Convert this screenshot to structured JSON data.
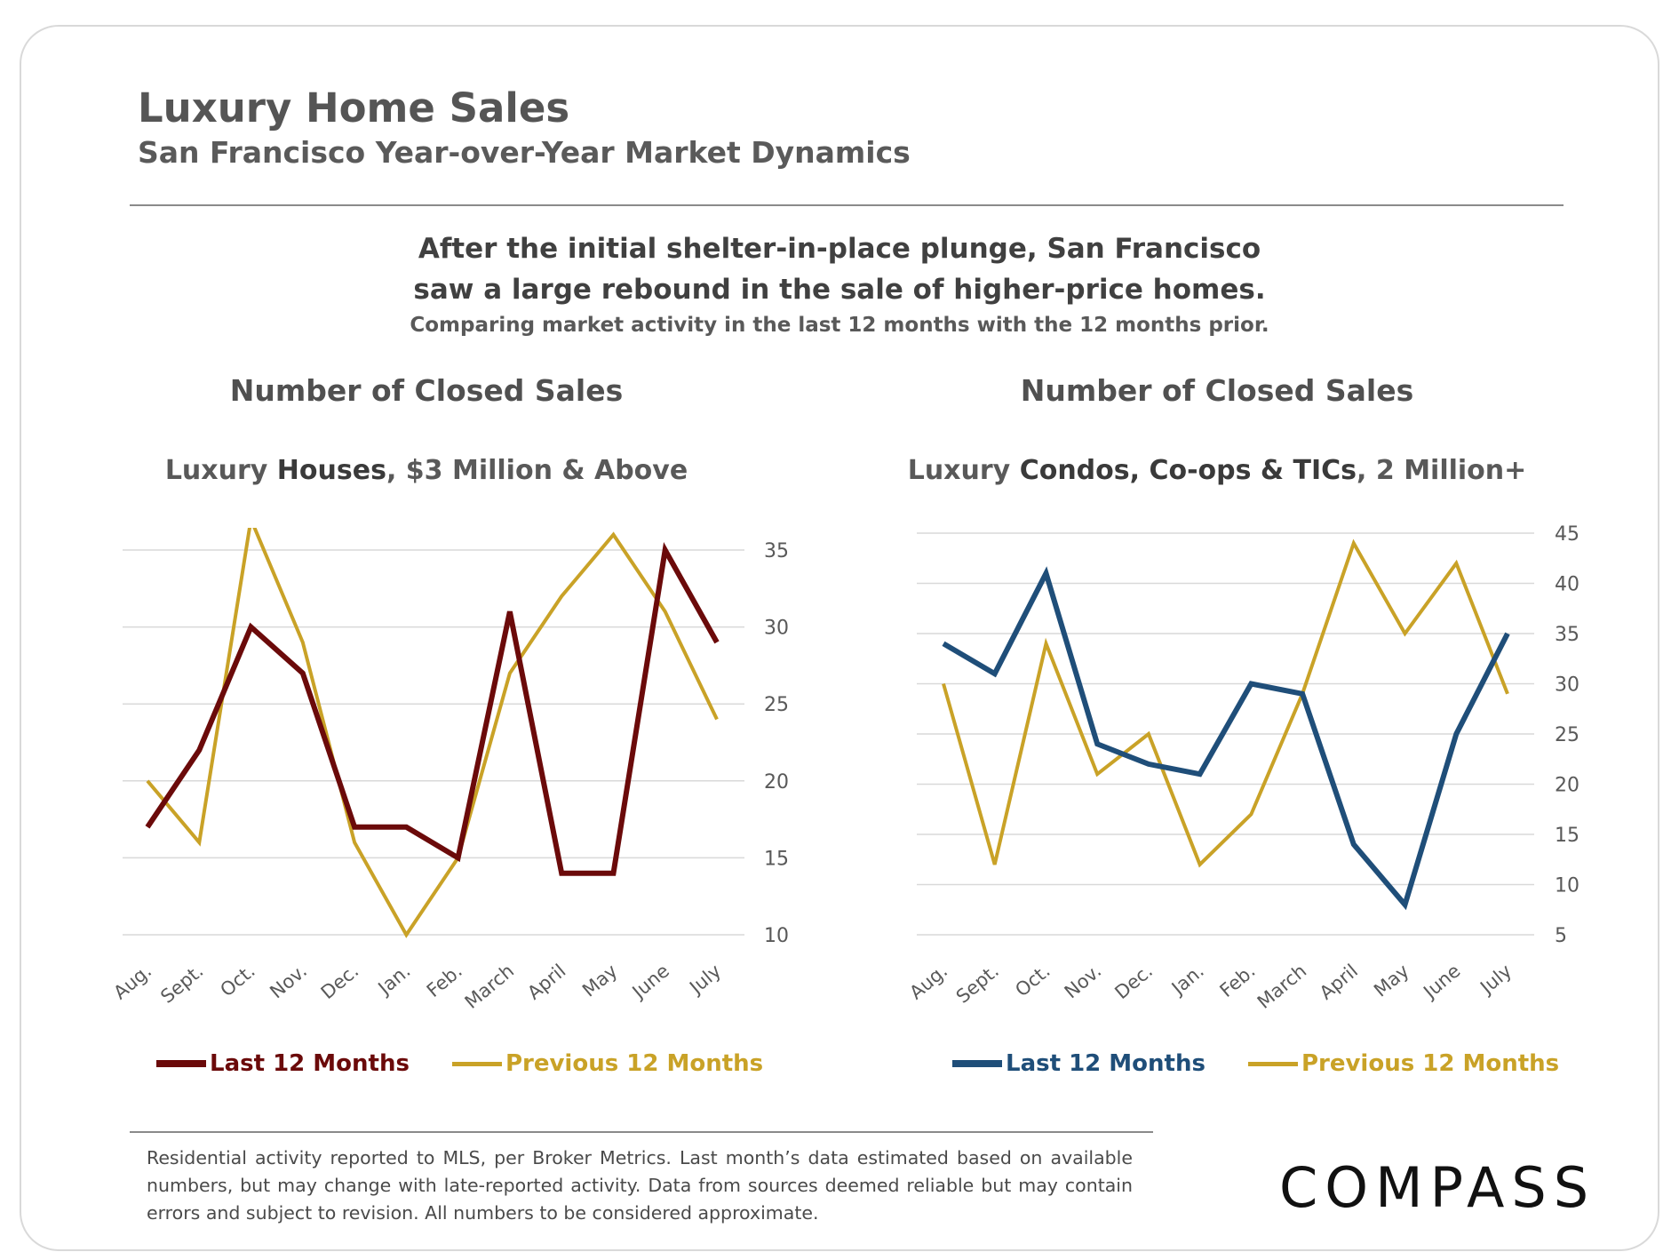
{
  "header": {
    "title": "Luxury Home Sales",
    "subtitle": "San Francisco Year-over-Year Market Dynamics"
  },
  "headline": {
    "line1": "After the initial shelter-in-place plunge, San Francisco",
    "line2": "saw a large rebound in the sale of higher-price homes.",
    "note": "Comparing market activity in the last 12 months with the 12 months prior."
  },
  "footer": {
    "disclaimer": "Residential activity reported to MLS, per Broker Metrics. Last month’s data estimated based on available numbers, but may change with late-reported activity. Data from sources deemed reliable but may contain errors and subject to revision. All numbers to be considered approximate.",
    "logo": "COMPASS"
  },
  "chart_data": [
    {
      "type": "line",
      "title": "Number of Closed Sales",
      "subtitle_pre": "Luxury ",
      "subtitle_bold": "Houses",
      "subtitle_post": ", $3 Million & Above",
      "categories": [
        "Aug.",
        "Sept.",
        "Oct.",
        "Nov.",
        "Dec.",
        "Jan.",
        "Feb.",
        "March",
        "April",
        "May",
        "June",
        "July"
      ],
      "yticks": [
        10,
        15,
        20,
        25,
        30,
        35
      ],
      "ylim": [
        10,
        35
      ],
      "y_axis_side": "right",
      "grid": true,
      "legend_placement": "bottom",
      "series": [
        {
          "name": "Last 12 Months",
          "color": "#6b0a0a",
          "width": 6,
          "values": [
            17,
            22,
            30,
            27,
            17,
            17,
            15,
            31,
            14,
            14,
            35,
            29
          ]
        },
        {
          "name": "Previous 12 Months",
          "color": "#c9a227",
          "width": 4,
          "values": [
            20,
            16,
            37,
            29,
            16,
            10,
            15,
            27,
            32,
            36,
            31,
            24
          ]
        }
      ]
    },
    {
      "type": "line",
      "title": "Number of Closed Sales",
      "subtitle_pre": "Luxury ",
      "subtitle_bold": "Condos, Co-ops & TICs",
      "subtitle_post": ", 2 Million+",
      "categories": [
        "Aug.",
        "Sept.",
        "Oct.",
        "Nov.",
        "Dec.",
        "Jan.",
        "Feb.",
        "March",
        "April",
        "May",
        "June",
        "July"
      ],
      "yticks": [
        5,
        10,
        15,
        20,
        25,
        30,
        35,
        40,
        45
      ],
      "ylim": [
        5,
        45
      ],
      "y_axis_side": "right",
      "grid": true,
      "legend_placement": "bottom",
      "series": [
        {
          "name": "Last 12 Months",
          "color": "#1f4e79",
          "width": 6,
          "values": [
            34,
            31,
            41,
            24,
            22,
            21,
            30,
            29,
            14,
            8,
            25,
            35
          ]
        },
        {
          "name": "Previous 12 Months",
          "color": "#c9a227",
          "width": 4,
          "values": [
            30,
            12,
            34,
            21,
            25,
            12,
            17,
            29,
            44,
            35,
            42,
            29
          ]
        }
      ]
    }
  ]
}
